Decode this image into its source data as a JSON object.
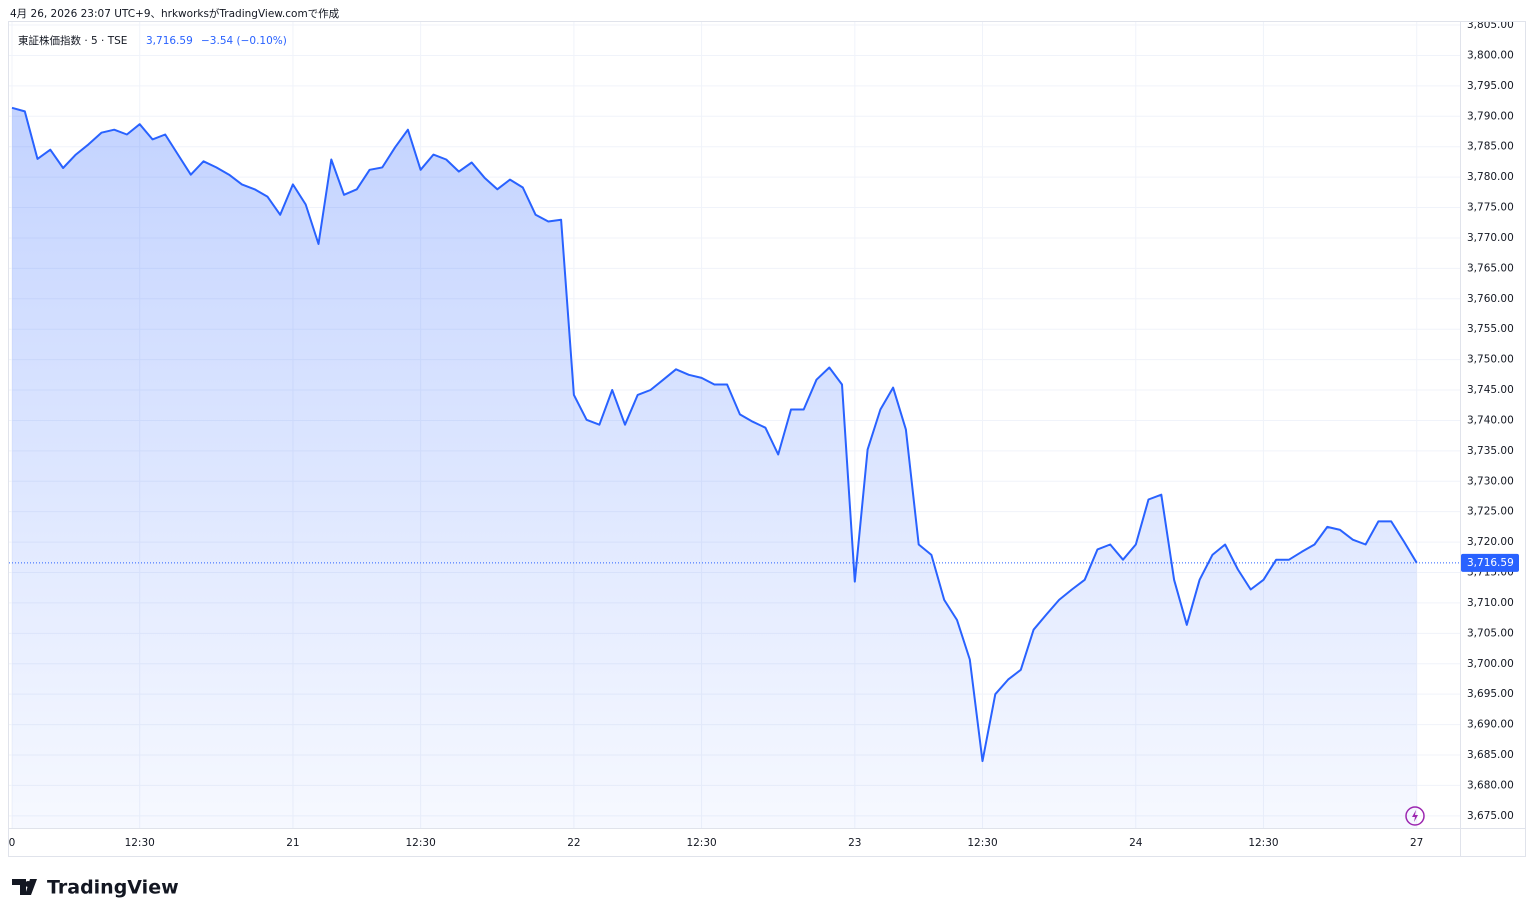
{
  "header": "4月 26, 2026 23:07 UTC+9、hrkworksがTradingView.comで作成",
  "legend": {
    "symbol": "東証株価指数 · 5 · TSE",
    "last": "3,716.59",
    "change": "−3.54 (−0.10%)"
  },
  "footer": "TradingView",
  "chart_data": {
    "type": "area",
    "color": "#2962ff",
    "categories": [
      "0",
      null,
      null,
      null,
      null,
      null,
      null,
      null,
      null,
      null,
      "12:30",
      null,
      null,
      null,
      null,
      null,
      null,
      null,
      null,
      null,
      null,
      null,
      "21",
      null,
      null,
      null,
      null,
      null,
      null,
      null,
      null,
      null,
      "12:30",
      null,
      null,
      null,
      null,
      null,
      null,
      null,
      null,
      null,
      null,
      null,
      "22",
      null,
      null,
      null,
      null,
      null,
      null,
      null,
      null,
      null,
      "12:30",
      null,
      null,
      null,
      null,
      null,
      null,
      null,
      null,
      null,
      null,
      null,
      "23",
      null,
      null,
      null,
      null,
      null,
      null,
      null,
      null,
      null,
      "12:30",
      null,
      null,
      null,
      null,
      null,
      null,
      null,
      null,
      null,
      null,
      null,
      "24",
      null,
      null,
      null,
      null,
      null,
      null,
      null,
      null,
      null,
      "12:30",
      null,
      null,
      null,
      null,
      null,
      null,
      null,
      null,
      null,
      null,
      null,
      "27"
    ],
    "values": [
      3791.4,
      3790.8,
      3783,
      3784.5,
      3781.5,
      3783.7,
      3785.4,
      3787.3,
      3787.8,
      3787,
      3788.7,
      3786.2,
      3787,
      3783.7,
      3780.4,
      3782.6,
      3781.6,
      3780.4,
      3778.8,
      3778,
      3776.8,
      3773.8,
      3778.8,
      3775.5,
      3769,
      3782.9,
      3777.1,
      3778,
      3781.2,
      3781.6,
      3784.9,
      3787.8,
      3781.2,
      3783.7,
      3782.9,
      3780.9,
      3782.4,
      3779.9,
      3778,
      3779.6,
      3778.3,
      3773.8,
      3772.7,
      3773,
      3744.2,
      3740.1,
      3739.3,
      3745,
      3739.3,
      3744.2,
      3745,
      3746.7,
      3748.4,
      3747.5,
      3747,
      3745.9,
      3745.9,
      3741,
      3739.8,
      3738.8,
      3734.4,
      3741.8,
      3741.8,
      3746.7,
      3748.7,
      3745.9,
      3713.5,
      3735.2,
      3741.8,
      3745.4,
      3738.5,
      3719.6,
      3717.9,
      3710.5,
      3707.2,
      3700.7,
      3684,
      3695,
      3697.4,
      3699,
      3705.6,
      3708.1,
      3710.5,
      3712.2,
      3713.8,
      3718.8,
      3719.6,
      3717.1,
      3719.6,
      3727,
      3727.8,
      3713.8,
      3706.4,
      3713.8,
      3717.9,
      3719.6,
      3715.5,
      3712.2,
      3713.8,
      3717.1,
      3717.1,
      3718.4,
      3719.6,
      3722.5,
      3722,
      3720.4,
      3719.6,
      3723.4,
      3723.4,
      3720.1,
      3716.59
    ],
    "last_value": {
      "value": 3716.59,
      "label": "3,716.59"
    },
    "ylim": [
      3673,
      3805.5
    ],
    "yticks": [
      {
        "value": 3675,
        "label": "3,675.00"
      },
      {
        "value": 3680,
        "label": "3,680.00"
      },
      {
        "value": 3685,
        "label": "3,685.00"
      },
      {
        "value": 3690,
        "label": "3,690.00"
      },
      {
        "value": 3695,
        "label": "3,695.00"
      },
      {
        "value": 3700,
        "label": "3,700.00"
      },
      {
        "value": 3705,
        "label": "3,705.00"
      },
      {
        "value": 3710,
        "label": "3,710.00"
      },
      {
        "value": 3715,
        "label": "3,715.00"
      },
      {
        "value": 3720,
        "label": "3,720.00"
      },
      {
        "value": 3725,
        "label": "3,725.00"
      },
      {
        "value": 3730,
        "label": "3,730.00"
      },
      {
        "value": 3735,
        "label": "3,735.00"
      },
      {
        "value": 3740,
        "label": "3,740.00"
      },
      {
        "value": 3745,
        "label": "3,745.00"
      },
      {
        "value": 3750,
        "label": "3,750.00"
      },
      {
        "value": 3755,
        "label": "3,755.00"
      },
      {
        "value": 3760,
        "label": "3,760.00"
      },
      {
        "value": 3765,
        "label": "3,765.00"
      },
      {
        "value": 3770,
        "label": "3,770.00"
      },
      {
        "value": 3775,
        "label": "3,775.00"
      },
      {
        "value": 3780,
        "label": "3,780.00"
      },
      {
        "value": 3785,
        "label": "3,785.00"
      },
      {
        "value": 3790,
        "label": "3,790.00"
      },
      {
        "value": 3795,
        "label": "3,795.00"
      },
      {
        "value": 3800,
        "label": "3,800.00"
      },
      {
        "value": 3805,
        "label": "3,805.00"
      }
    ],
    "grid": true
  }
}
